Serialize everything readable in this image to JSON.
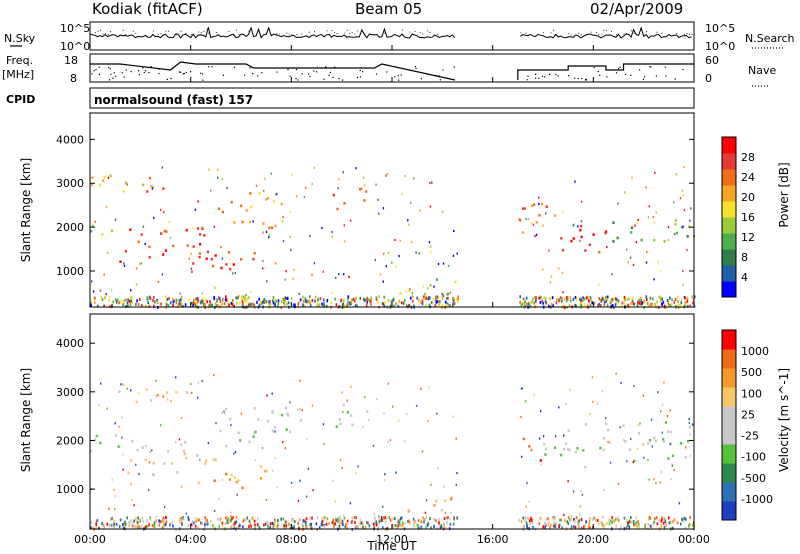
{
  "header": {
    "station": "Kodiak (fitACF)",
    "beam": "Beam 05",
    "date": "02/Apr/2009"
  },
  "top_panels": {
    "nsky_label": "N.Sky",
    "nsky_ticks": [
      "10^5",
      "10^0"
    ],
    "nsearch_label": "N.Search",
    "nsearch_ticks": [
      "10^5",
      "10^0"
    ],
    "freq_label": "Freq.",
    "freq_unit": "[MHz]",
    "freq_ticks": [
      "18",
      "8"
    ],
    "nave_label": "Nave",
    "nave_ticks": [
      "60",
      "0"
    ],
    "cpid_label": "CPID",
    "cpid_value": "normalsound (fast) 157"
  },
  "colors": {
    "power_scale": [
      "#0000ff",
      "#1f5fa8",
      "#2e7d4a",
      "#4caf50",
      "#9ccc3a",
      "#f2e32a",
      "#f5a623",
      "#ef6c1a",
      "#e53935",
      "#ff0000"
    ],
    "velocity_scale": [
      "#1e3fbf",
      "#2e6fb5",
      "#2e8a4a",
      "#55c23a",
      "#c8c8c8",
      "#c8c8c8",
      "#f7c86a",
      "#f59a2a",
      "#f06a1a",
      "#ff0000"
    ]
  },
  "chart_data": [
    {
      "type": "heatmap",
      "name": "power",
      "xlabel": "",
      "ylabel": "Slant Range [km]",
      "x_ticks": [
        "00:00",
        "04:00",
        "08:00",
        "12:00",
        "16:00",
        "20:00",
        "00:00"
      ],
      "y_ticks": [
        "1000",
        "2000",
        "3000",
        "4000"
      ],
      "xlim": [
        0,
        24
      ],
      "ylim": [
        180,
        4600
      ],
      "colorbar": {
        "label": "Power [dB]",
        "ticks": [
          "28",
          "24",
          "20",
          "16",
          "12",
          "8",
          "4"
        ],
        "range": [
          0,
          32
        ]
      },
      "echo_regions": [
        {
          "t": [
            0.0,
            1.6
          ],
          "r": [
            1800,
            2100
          ],
          "level": 4
        },
        {
          "t": [
            0.0,
            2.5
          ],
          "r": [
            2800,
            3300
          ],
          "level": 5
        },
        {
          "t": [
            1.0,
            4.5
          ],
          "r": [
            1200,
            2000
          ],
          "level": 8
        },
        {
          "t": [
            2.0,
            3.0
          ],
          "r": [
            2800,
            3200
          ],
          "level": 7
        },
        {
          "t": [
            4.0,
            7.0
          ],
          "r": [
            1000,
            1600
          ],
          "level": 8
        },
        {
          "t": [
            5.0,
            7.8
          ],
          "r": [
            2000,
            2800
          ],
          "level": 6
        },
        {
          "t": [
            9.5,
            11.0
          ],
          "r": [
            2400,
            2900
          ],
          "level": 7
        },
        {
          "t": [
            12.0,
            14.5
          ],
          "r": [
            500,
            900
          ],
          "level": 4
        },
        {
          "t": [
            17.0,
            18.5
          ],
          "r": [
            1800,
            2600
          ],
          "level": 7
        },
        {
          "t": [
            18.5,
            20.5
          ],
          "r": [
            1400,
            2200
          ],
          "level": 8
        },
        {
          "t": [
            20.5,
            24.0
          ],
          "r": [
            1700,
            2200
          ],
          "level": 3
        }
      ]
    },
    {
      "type": "heatmap",
      "name": "velocity",
      "xlabel": "Time UT",
      "ylabel": "Slant Range [km]",
      "x_ticks": [
        "00:00",
        "04:00",
        "08:00",
        "12:00",
        "16:00",
        "20:00",
        "00:00"
      ],
      "y_ticks": [
        "1000",
        "2000",
        "3000",
        "4000"
      ],
      "xlim": [
        0,
        24
      ],
      "ylim": [
        180,
        4600
      ],
      "colorbar": {
        "label": "Velocity [m s^-1]",
        "ticks": [
          "1000",
          "500",
          "100",
          "25",
          "-25",
          "-100",
          "-500",
          "-1000"
        ],
        "range": [
          -1000,
          1000
        ]
      },
      "echo_regions": [
        {
          "t": [
            0.0,
            2.0
          ],
          "r": [
            1800,
            2200
          ],
          "level": 4
        },
        {
          "t": [
            1.0,
            4.0
          ],
          "r": [
            2800,
            3200
          ],
          "level": 6
        },
        {
          "t": [
            1.0,
            5.0
          ],
          "r": [
            1300,
            2000
          ],
          "level": 5
        },
        {
          "t": [
            4.0,
            7.0
          ],
          "r": [
            1000,
            1500
          ],
          "level": 7
        },
        {
          "t": [
            5.0,
            8.5
          ],
          "r": [
            1900,
            2700
          ],
          "level": 4
        },
        {
          "t": [
            9.5,
            11.0
          ],
          "r": [
            2300,
            2900
          ],
          "level": 4
        },
        {
          "t": [
            12.5,
            14.5
          ],
          "r": [
            500,
            900
          ],
          "level": 6
        },
        {
          "t": [
            17.0,
            18.0
          ],
          "r": [
            1600,
            2100
          ],
          "level": 8
        },
        {
          "t": [
            18.0,
            24.0
          ],
          "r": [
            1600,
            2400
          ],
          "level": 4
        }
      ]
    }
  ]
}
